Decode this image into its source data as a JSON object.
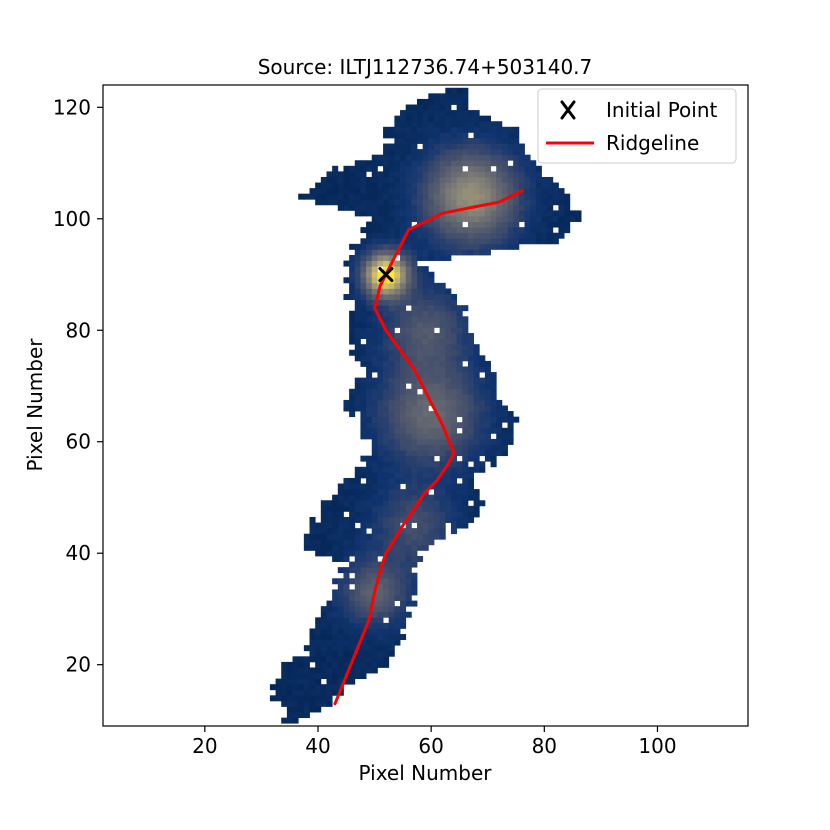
{
  "chart_data": {
    "type": "heatmap",
    "title": "Source: ILTJ112736.74+503140.7",
    "xlabel": "Pixel Number",
    "ylabel": "Pixel Number",
    "xlim": [
      2,
      116
    ],
    "ylim": [
      9,
      124
    ],
    "xticks": [
      20,
      40,
      60,
      80,
      100
    ],
    "yticks": [
      20,
      40,
      60,
      80,
      100,
      120
    ],
    "legend": {
      "placement": "top-right",
      "entries": [
        {
          "label": "Initial Point",
          "marker": "x",
          "color": "#000000"
        },
        {
          "label": "Ridgeline",
          "marker": "line",
          "color": "#ff0000"
        }
      ]
    },
    "initial_point": {
      "x": 52,
      "y": 90
    },
    "ridgeline": {
      "x": [
        43,
        45,
        47,
        49,
        50,
        51,
        52,
        55,
        57,
        59,
        61,
        63,
        64,
        62,
        57,
        52,
        50,
        51,
        52,
        54,
        56,
        58,
        62,
        67,
        72,
        76
      ],
      "y": [
        13,
        18,
        23,
        28,
        33,
        37,
        40,
        45,
        48,
        51,
        53,
        56,
        58,
        63,
        73,
        80,
        84,
        88,
        90,
        94,
        98,
        99,
        101,
        102,
        103,
        105
      ]
    },
    "source_region": {
      "colormap": [
        "#00224e",
        "#123570",
        "#3b496c",
        "#575d6d",
        "#707173",
        "#8a8678",
        "#a69d75",
        "#c4b56c",
        "#e4cf5b",
        "#fee838"
      ],
      "envelope": [
        {
          "y": 10,
          "left": 34,
          "right": 37
        },
        {
          "y": 13,
          "left": 33,
          "right": 42
        },
        {
          "y": 16,
          "left": 31,
          "right": 45
        },
        {
          "y": 19,
          "left": 33,
          "right": 51
        },
        {
          "y": 22,
          "left": 37,
          "right": 54
        },
        {
          "y": 26,
          "left": 39,
          "right": 55
        },
        {
          "y": 30,
          "left": 41,
          "right": 56
        },
        {
          "y": 34,
          "left": 43,
          "right": 58
        },
        {
          "y": 38,
          "left": 45,
          "right": 57
        },
        {
          "y": 41,
          "left": 37,
          "right": 59
        },
        {
          "y": 45,
          "left": 39,
          "right": 66
        },
        {
          "y": 49,
          "left": 41,
          "right": 69
        },
        {
          "y": 53,
          "left": 45,
          "right": 67
        },
        {
          "y": 57,
          "left": 48,
          "right": 72
        },
        {
          "y": 60,
          "left": 49,
          "right": 75
        },
        {
          "y": 64,
          "left": 46,
          "right": 75
        },
        {
          "y": 68,
          "left": 45,
          "right": 72
        },
        {
          "y": 72,
          "left": 48,
          "right": 72
        },
        {
          "y": 76,
          "left": 46,
          "right": 69
        },
        {
          "y": 80,
          "left": 45,
          "right": 67
        },
        {
          "y": 84,
          "left": 46,
          "right": 66
        },
        {
          "y": 88,
          "left": 45,
          "right": 62
        },
        {
          "y": 92,
          "left": 45,
          "right": 58
        },
        {
          "y": 96,
          "left": 47,
          "right": 82
        },
        {
          "y": 100,
          "left": 49,
          "right": 86
        },
        {
          "y": 104,
          "left": 37,
          "right": 85
        },
        {
          "y": 108,
          "left": 41,
          "right": 80
        },
        {
          "y": 112,
          "left": 51,
          "right": 76
        },
        {
          "y": 116,
          "left": 52,
          "right": 75
        },
        {
          "y": 120,
          "left": 56,
          "right": 67
        },
        {
          "y": 123,
          "left": 62,
          "right": 66
        }
      ],
      "brightness_peaks": [
        {
          "x": 52,
          "y": 90,
          "intensity": 1.0,
          "spread": 2.6
        },
        {
          "x": 67,
          "y": 104,
          "intensity": 0.55,
          "spread": 5.5
        },
        {
          "x": 60,
          "y": 65,
          "intensity": 0.35,
          "spread": 6
        },
        {
          "x": 59,
          "y": 80,
          "intensity": 0.25,
          "spread": 5
        },
        {
          "x": 50,
          "y": 33,
          "intensity": 0.3,
          "spread": 4
        },
        {
          "x": 57,
          "y": 45,
          "intensity": 0.2,
          "spread": 5
        }
      ]
    }
  }
}
